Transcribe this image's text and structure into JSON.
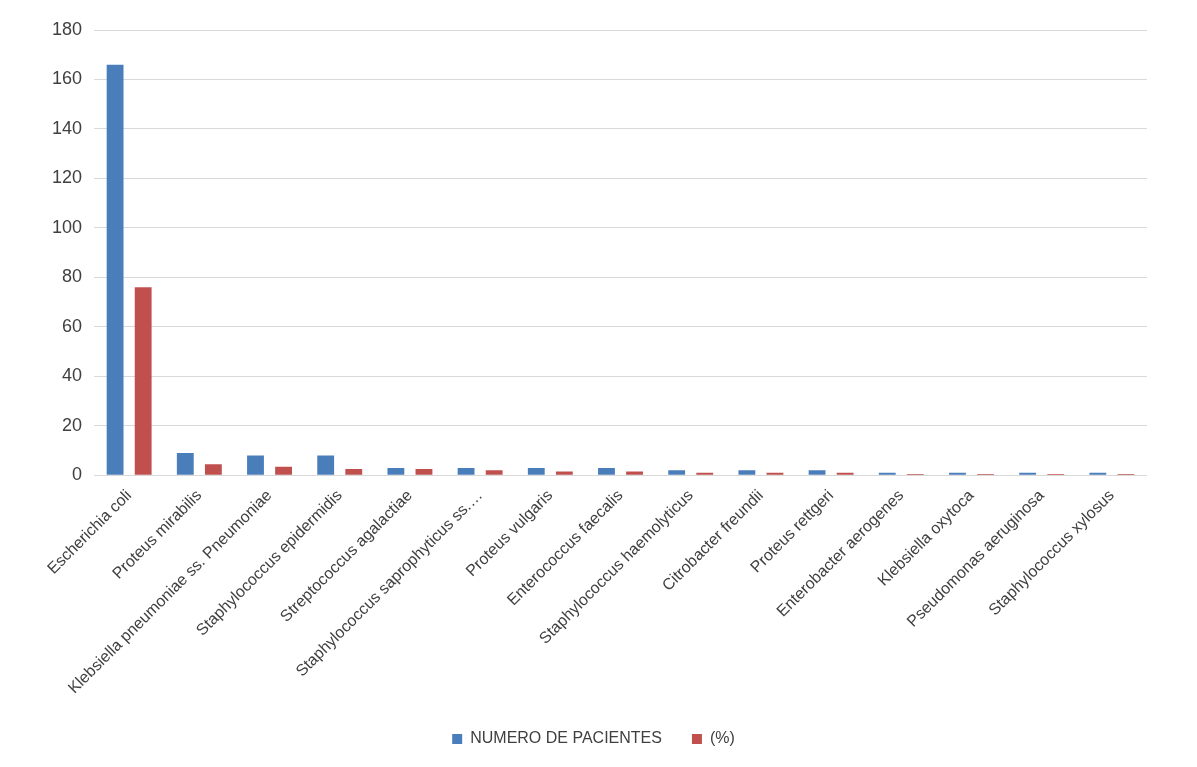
{
  "chart_data": {
    "type": "bar",
    "categories": [
      "Escherichia coli",
      "Proteus mirabilis",
      "Klebsiella pneumoniae ss. Pneumoniae",
      "Staphylococcus epidermidis",
      "Streptococcus agalactiae",
      "Staphylococcus saprophyticus ss.…",
      "Proteus vulgaris",
      "Enterococcus faecalis",
      "Staphylococcus haemolyticus",
      "Citrobacter freundii",
      "Proteus rettgeri",
      "Enterobacter aerogenes",
      "Klebsiella oxytoca",
      "Pseudomonas aeruginosa",
      "Staphylococcus xylosus"
    ],
    "series": [
      {
        "name": "NUMERO DE PACIENTES",
        "color": "#4a7ebb",
        "values": [
          166,
          9,
          8,
          8,
          3,
          3,
          3,
          3,
          2,
          2,
          2,
          1,
          1,
          1,
          1
        ]
      },
      {
        "name": "(%)",
        "color": "#c0504d",
        "values": [
          76,
          4.5,
          3.5,
          2.5,
          2.5,
          2,
          1.5,
          1.5,
          1,
          1,
          1,
          0.5,
          0.5,
          0.5,
          0.5
        ]
      }
    ],
    "ylim": [
      0,
      180
    ],
    "yticks": [
      0,
      20,
      40,
      60,
      80,
      100,
      120,
      140,
      160,
      180
    ],
    "grid": "y",
    "legend": "bottom"
  }
}
